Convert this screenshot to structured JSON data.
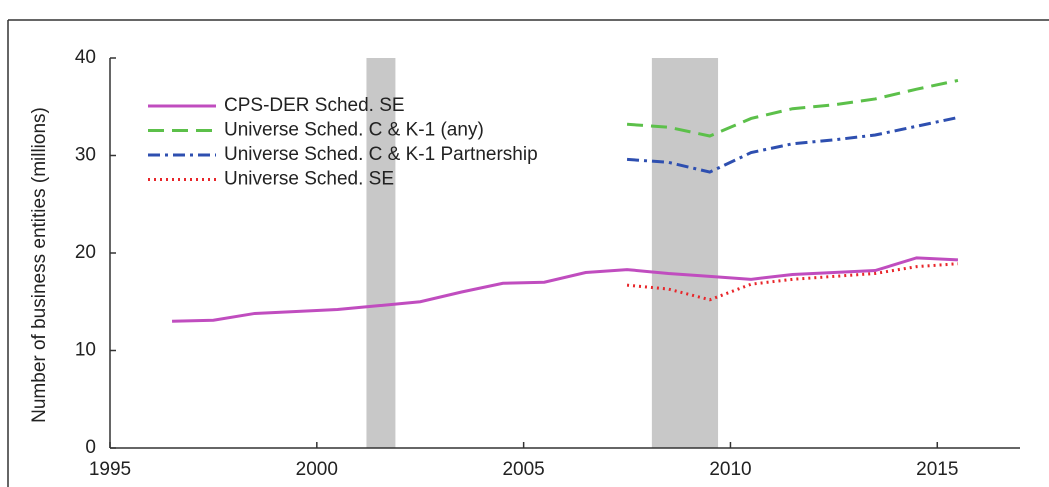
{
  "chart_data": {
    "type": "line",
    "y_label": "Number of business entities (millions)",
    "xlim": [
      1995,
      2017
    ],
    "xticks": [
      1995,
      2000,
      2005,
      2010,
      2015
    ],
    "ylim": [
      0,
      40
    ],
    "yticks": [
      0,
      10,
      20,
      30,
      40
    ],
    "shaded_ranges": [
      [
        2001.2,
        2001.9
      ],
      [
        2008.1,
        2009.7
      ]
    ],
    "shade_color": "#c8c8c8",
    "legend": "upper left",
    "x": [
      1996.5,
      1997.5,
      1998.5,
      1999.5,
      2000.5,
      2001.5,
      2002.5,
      2003.5,
      2004.5,
      2005.5,
      2006.5,
      2007.5,
      2008.5,
      2009.5,
      2010.5,
      2011.5,
      2012.5,
      2013.5,
      2014.5,
      2015.5
    ],
    "series": [
      {
        "name": "CPS-DER Sched. SE",
        "color": "#c04dbf",
        "dash": "solid",
        "values": [
          13.0,
          13.1,
          13.8,
          14.0,
          14.2,
          14.6,
          15.0,
          16.0,
          16.9,
          17.0,
          18.0,
          18.3,
          17.9,
          17.6,
          17.3,
          17.8,
          18.0,
          18.2,
          19.5,
          19.3
        ]
      },
      {
        "name": "Universe Sched. C & K-1 (any)",
        "color": "#5cc04a",
        "dash": "dashed",
        "values": [
          null,
          null,
          null,
          null,
          null,
          null,
          null,
          null,
          null,
          null,
          null,
          33.2,
          32.9,
          32.0,
          33.8,
          34.8,
          35.2,
          35.8,
          36.8,
          37.7
        ]
      },
      {
        "name": "Universe Sched. C & K-1 Partnership",
        "color": "#2e4fb0",
        "dash": "dashdot",
        "values": [
          null,
          null,
          null,
          null,
          null,
          null,
          null,
          null,
          null,
          null,
          null,
          29.6,
          29.3,
          28.3,
          30.3,
          31.2,
          31.6,
          32.1,
          33.0,
          33.9
        ]
      },
      {
        "name": "Universe Sched. SE",
        "color": "#e8262a",
        "dash": "dotted",
        "values": [
          null,
          null,
          null,
          null,
          null,
          null,
          null,
          null,
          null,
          null,
          null,
          16.7,
          16.3,
          15.2,
          16.8,
          17.3,
          17.6,
          17.9,
          18.6,
          18.9
        ]
      }
    ]
  }
}
